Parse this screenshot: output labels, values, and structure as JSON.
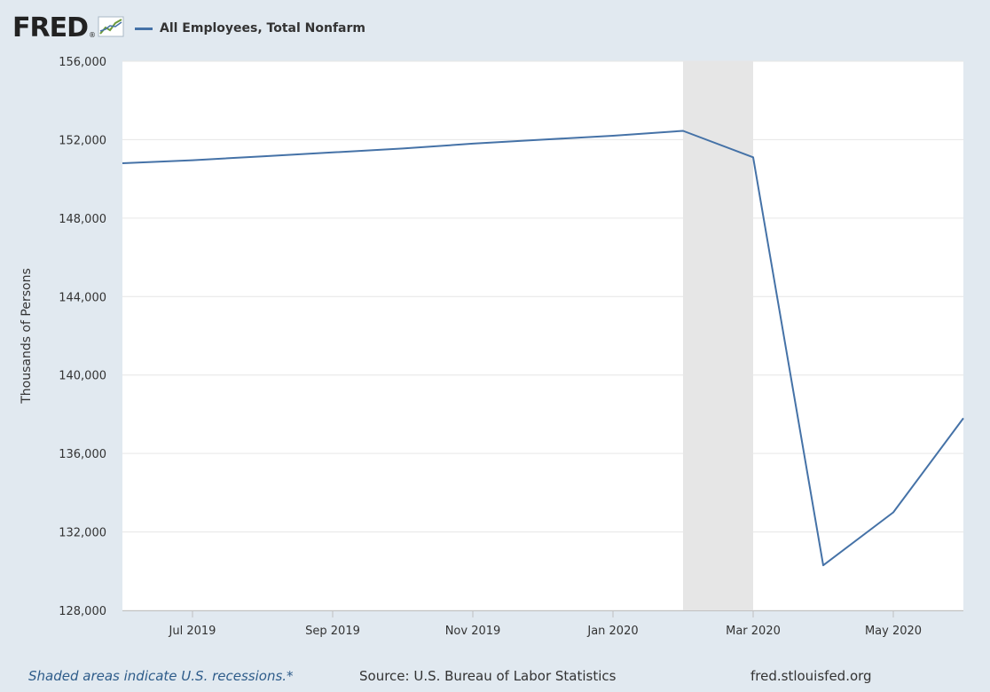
{
  "header": {
    "logo_text": "FRED",
    "logo_mark": "®",
    "logo_icon": "chart-line-icon",
    "series_legend": "All Employees, Total Nonfarm"
  },
  "chart_data": {
    "type": "line",
    "title": "",
    "xlabel": "",
    "ylabel": "Thousands of Persons",
    "ylim": [
      128000,
      156000
    ],
    "yticks": [
      128000,
      132000,
      136000,
      140000,
      144000,
      148000,
      152000,
      156000
    ],
    "ytick_labels": [
      "128,000",
      "132,000",
      "136,000",
      "140,000",
      "144,000",
      "148,000",
      "152,000",
      "156,000"
    ],
    "xlim": [
      "2019-06",
      "2020-06"
    ],
    "xticks": [
      "2019-07",
      "2019-09",
      "2019-11",
      "2020-01",
      "2020-03",
      "2020-05"
    ],
    "xtick_labels": [
      "Jul 2019",
      "Sep 2019",
      "Nov 2019",
      "Jan 2020",
      "Mar 2020",
      "May 2020"
    ],
    "grid": "horizontal",
    "series": [
      {
        "name": "All Employees, Total Nonfarm",
        "color": "#4572a7",
        "x": [
          "2019-06",
          "2019-07",
          "2019-08",
          "2019-09",
          "2019-10",
          "2019-11",
          "2019-12",
          "2020-01",
          "2020-02",
          "2020-03",
          "2020-04",
          "2020-05",
          "2020-06"
        ],
        "values": [
          150800,
          150950,
          151150,
          151350,
          151550,
          151800,
          152000,
          152200,
          152450,
          151100,
          130300,
          133000,
          137800
        ]
      }
    ],
    "recessions": [
      {
        "start": "2020-02",
        "end": "2020-03",
        "color": "#e6e6e6"
      }
    ]
  },
  "footer": {
    "note": "Shaded areas indicate U.S. recessions.*",
    "source": "Source: U.S. Bureau of Labor Statistics",
    "url": "fred.stlouisfed.org"
  }
}
